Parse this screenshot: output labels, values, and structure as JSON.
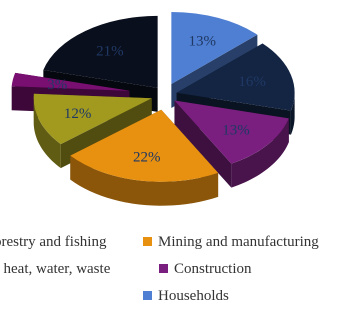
{
  "chart_data": {
    "type": "pie",
    "style": "exploded-3d",
    "title": "",
    "unit": "%",
    "slices": [
      {
        "name": "Households",
        "value": 13,
        "label": "13%",
        "color": "#4f7fd2",
        "label_color": "#1f3864"
      },
      {
        "name": "",
        "value": 16,
        "label": "16%",
        "color": "#142544",
        "label_color": "#1f3864"
      },
      {
        "name": "Construction",
        "value": 13,
        "label": "13%",
        "color": "#7a1f7f",
        "label_color": "#1f3864"
      },
      {
        "name": "Mining and manufacturing",
        "value": 22,
        "label": "22%",
        "color": "#e8900f",
        "label_color": "#1f3864"
      },
      {
        "name": "",
        "value": 12,
        "label": "12%",
        "color": "#a19a1f",
        "label_color": "#1f3864"
      },
      {
        "name": "",
        "value": 3,
        "label": "3%",
        "color": "#7a0f72",
        "label_color": "#1f3864"
      },
      {
        "name": "",
        "value": 21,
        "label": "21%",
        "color": "#0a0f1d",
        "label_color": "#1f3864"
      }
    ],
    "legend": {
      "placement": "bottom",
      "items": [
        {
          "text": "orestry and fishing",
          "color": "#a19a1f"
        },
        {
          "text": "Mining and manufacturing",
          "color": "#e8900f"
        },
        {
          "text": ", heat, water, waste",
          "color": "#0a0f1d"
        },
        {
          "text": "Construction",
          "color": "#7a1f7f"
        },
        {
          "text": "Households",
          "color": "#4f7fd2"
        }
      ]
    }
  }
}
